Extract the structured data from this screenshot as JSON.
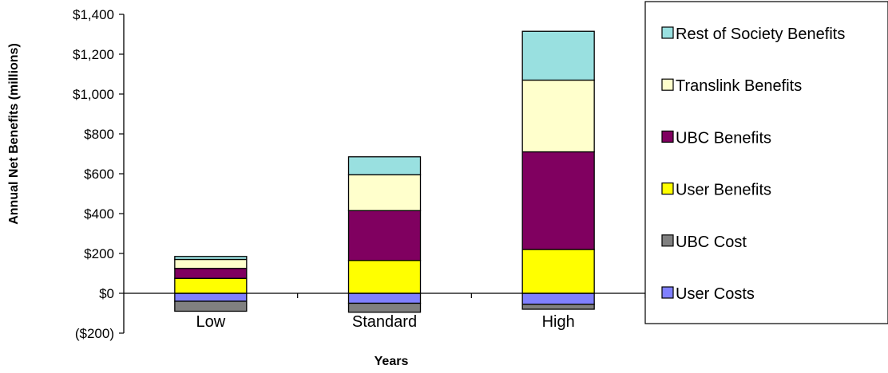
{
  "chart_data": {
    "type": "bar",
    "stacked": true,
    "categories": [
      "Low",
      "Standard",
      "High"
    ],
    "xlabel": "Years",
    "ylabel": "Annual Net Benefits (millions)",
    "ylim": [
      -200,
      1400
    ],
    "yticks": [
      {
        "value": -200,
        "label": "($200)"
      },
      {
        "value": 0,
        "label": "$0"
      },
      {
        "value": 200,
        "label": "$200"
      },
      {
        "value": 400,
        "label": "$400"
      },
      {
        "value": 600,
        "label": "$600"
      },
      {
        "value": 800,
        "label": "$800"
      },
      {
        "value": 1000,
        "label": "$1,000"
      },
      {
        "value": 1200,
        "label": "$1,200"
      },
      {
        "value": 1400,
        "label": "$1,400"
      }
    ],
    "negative_tick_color": "#ff0000",
    "grid": false,
    "legend_position": "right",
    "series": [
      {
        "name": "User Costs",
        "color": "#8080ff",
        "values": [
          -40,
          -50,
          -55
        ]
      },
      {
        "name": "UBC Cost",
        "color": "#808080",
        "values": [
          -50,
          -45,
          -25
        ]
      },
      {
        "name": "User Benefits",
        "color": "#ffff00",
        "values": [
          75,
          165,
          220
        ]
      },
      {
        "name": "UBC Benefits",
        "color": "#800060",
        "values": [
          50,
          250,
          490
        ]
      },
      {
        "name": "Translink Benefits",
        "color": "#ffffcc",
        "values": [
          45,
          180,
          360
        ]
      },
      {
        "name": "Rest of Society Benefits",
        "color": "#99e0e0",
        "values": [
          15,
          90,
          245
        ]
      }
    ],
    "legend_order": [
      "Rest of Society Benefits",
      "Translink Benefits",
      "UBC Benefits",
      "User Benefits",
      "UBC Cost",
      "User Costs"
    ]
  }
}
